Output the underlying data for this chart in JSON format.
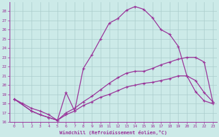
{
  "xlabel": "Windchill (Refroidissement éolien,°C)",
  "bg_color": "#cceae8",
  "grid_color": "#aacccc",
  "line_color": "#993399",
  "xlim": [
    -0.5,
    23.5
  ],
  "ylim": [
    16,
    29
  ],
  "yticks": [
    16,
    17,
    18,
    19,
    20,
    21,
    22,
    23,
    24,
    25,
    26,
    27,
    28
  ],
  "xticks": [
    0,
    1,
    2,
    3,
    4,
    5,
    6,
    7,
    8,
    9,
    10,
    11,
    12,
    13,
    14,
    15,
    16,
    17,
    18,
    19,
    20,
    21,
    22,
    23
  ],
  "lines": [
    {
      "x": [
        0,
        1,
        2,
        3,
        4,
        5,
        6,
        7,
        8,
        9,
        10,
        11,
        12,
        13,
        14,
        15,
        16,
        17,
        18,
        19,
        20,
        21,
        22,
        23
      ],
      "y": [
        18.5,
        18.0,
        17.5,
        17.2,
        16.8,
        16.2,
        19.2,
        17.2,
        21.8,
        23.3,
        25.0,
        26.7,
        27.2,
        28.1,
        28.5,
        28.2,
        27.3,
        26.0,
        25.5,
        24.2,
        21.0,
        19.3,
        18.3,
        18.0
      ]
    },
    {
      "x": [
        0,
        2,
        3,
        4,
        5,
        6,
        7,
        8,
        9,
        10,
        11,
        12,
        13,
        14,
        15,
        16,
        17,
        18,
        19,
        20,
        21,
        22,
        23
      ],
      "y": [
        18.5,
        17.2,
        16.8,
        16.5,
        16.2,
        17.0,
        17.5,
        18.2,
        18.8,
        19.5,
        20.2,
        20.8,
        21.3,
        21.5,
        21.5,
        21.8,
        22.2,
        22.5,
        22.8,
        23.0,
        23.0,
        22.5,
        18.2
      ]
    },
    {
      "x": [
        0,
        2,
        3,
        4,
        5,
        6,
        7,
        8,
        9,
        10,
        11,
        12,
        13,
        14,
        15,
        16,
        17,
        18,
        19,
        20,
        21,
        22,
        23
      ],
      "y": [
        18.5,
        17.2,
        16.8,
        16.5,
        16.2,
        16.8,
        17.2,
        17.8,
        18.2,
        18.7,
        19.0,
        19.4,
        19.8,
        20.0,
        20.2,
        20.3,
        20.5,
        20.7,
        21.0,
        21.0,
        20.5,
        19.2,
        18.2
      ]
    }
  ]
}
